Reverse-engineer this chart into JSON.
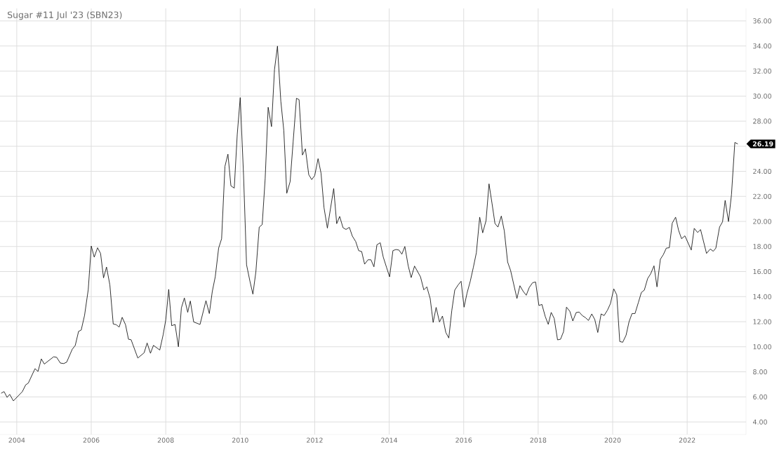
{
  "chart_data": {
    "type": "line",
    "title": "Sugar #11 Jul '23 (SBN23)",
    "x": [
      2003.58,
      2003.66,
      2003.74,
      2003.81,
      2003.91,
      2004.15,
      2004.24,
      2004.31,
      2004.49,
      2004.57,
      2004.66,
      2004.74,
      2004.99,
      2005.07,
      2005.17,
      2005.26,
      2005.34,
      2005.49,
      2005.57,
      2005.66,
      2005.73,
      2005.82,
      2005.92,
      2006.0,
      2006.08,
      2006.17,
      2006.25,
      2006.33,
      2006.41,
      2006.5,
      2006.59,
      2006.67,
      2006.75,
      2006.83,
      2006.92,
      2007.0,
      2007.07,
      2007.25,
      2007.42,
      2007.5,
      2007.59,
      2007.67,
      2007.84,
      2007.93,
      2008.0,
      2008.08,
      2008.16,
      2008.25,
      2008.34,
      2008.42,
      2008.5,
      2008.59,
      2008.66,
      2008.75,
      2008.92,
      2009.08,
      2009.17,
      2009.25,
      2009.33,
      2009.42,
      2009.5,
      2009.59,
      2009.67,
      2009.75,
      2009.84,
      2009.92,
      2010.0,
      2010.09,
      2010.17,
      2010.26,
      2010.34,
      2010.42,
      2010.51,
      2010.59,
      2010.67,
      2010.75,
      2010.84,
      2010.92,
      2011.0,
      2011.09,
      2011.17,
      2011.25,
      2011.34,
      2011.42,
      2011.51,
      2011.58,
      2011.67,
      2011.75,
      2011.84,
      2011.92,
      2012.0,
      2012.09,
      2012.17,
      2012.25,
      2012.34,
      2012.51,
      2012.59,
      2012.67,
      2012.76,
      2012.84,
      2012.93,
      2013.01,
      2013.1,
      2013.18,
      2013.26,
      2013.34,
      2013.43,
      2013.51,
      2013.59,
      2013.67,
      2013.76,
      2013.84,
      2013.93,
      2014.01,
      2014.1,
      2014.18,
      2014.26,
      2014.34,
      2014.42,
      2014.51,
      2014.59,
      2014.68,
      2014.84,
      2014.93,
      2015.01,
      2015.1,
      2015.18,
      2015.26,
      2015.35,
      2015.43,
      2015.52,
      2015.6,
      2015.68,
      2015.76,
      2015.85,
      2015.93,
      2016.01,
      2016.09,
      2016.18,
      2016.26,
      2016.34,
      2016.43,
      2016.51,
      2016.6,
      2016.68,
      2016.76,
      2016.84,
      2016.92,
      2017.01,
      2017.09,
      2017.18,
      2017.26,
      2017.43,
      2017.51,
      2017.6,
      2017.68,
      2017.76,
      2017.85,
      2017.93,
      2018.02,
      2018.1,
      2018.19,
      2018.27,
      2018.35,
      2018.43,
      2018.52,
      2018.6,
      2018.68,
      2018.76,
      2018.85,
      2018.93,
      2019.02,
      2019.1,
      2019.18,
      2019.27,
      2019.35,
      2019.44,
      2019.52,
      2019.6,
      2019.69,
      2019.77,
      2019.86,
      2019.94,
      2020.03,
      2020.11,
      2020.19,
      2020.27,
      2020.36,
      2020.44,
      2020.52,
      2020.6,
      2020.69,
      2020.77,
      2020.85,
      2020.94,
      2021.02,
      2021.11,
      2021.19,
      2021.28,
      2021.36,
      2021.44,
      2021.52,
      2021.6,
      2021.69,
      2021.77,
      2021.85,
      2021.94,
      2022.11,
      2022.19,
      2022.28,
      2022.36,
      2022.52,
      2022.62,
      2022.7,
      2022.77,
      2022.87,
      2022.95,
      2023.02,
      2023.11,
      2023.19,
      2023.28,
      2023.36
    ],
    "values": [
      6.29,
      6.42,
      5.96,
      6.2,
      5.68,
      6.42,
      6.96,
      7.1,
      8.25,
      8.03,
      9.03,
      8.62,
      9.2,
      9.16,
      8.7,
      8.66,
      8.77,
      9.8,
      10.1,
      11.23,
      11.33,
      12.5,
      14.57,
      18.04,
      17.15,
      17.9,
      17.45,
      15.5,
      16.36,
      14.93,
      11.82,
      11.76,
      11.57,
      12.35,
      11.76,
      10.6,
      10.56,
      9.1,
      9.52,
      10.3,
      9.48,
      10.11,
      9.74,
      10.95,
      12.13,
      14.58,
      11.68,
      11.78,
      10.0,
      13.1,
      13.89,
      12.75,
      13.65,
      11.98,
      11.78,
      13.68,
      12.65,
      14.41,
      15.59,
      17.87,
      18.62,
      24.4,
      25.37,
      22.84,
      22.66,
      26.94,
      29.88,
      23.64,
      16.54,
      15.24,
      14.2,
      15.97,
      19.55,
      19.75,
      23.42,
      29.11,
      27.57,
      32.12,
      33.99,
      29.6,
      27.26,
      22.25,
      23.18,
      26.33,
      29.83,
      29.72,
      25.3,
      25.79,
      23.73,
      23.34,
      23.66,
      25.01,
      23.85,
      21.09,
      19.47,
      22.63,
      19.82,
      20.4,
      19.5,
      19.36,
      19.53,
      18.83,
      18.4,
      17.67,
      17.6,
      16.59,
      16.94,
      16.94,
      16.38,
      18.14,
      18.3,
      17.16,
      16.32,
      15.58,
      17.67,
      17.76,
      17.72,
      17.39,
      18.0,
      16.46,
      15.52,
      16.44,
      15.58,
      14.54,
      14.78,
      13.85,
      11.94,
      13.14,
      11.98,
      12.45,
      11.14,
      10.7,
      12.88,
      14.52,
      14.93,
      15.23,
      13.16,
      14.28,
      15.27,
      16.35,
      17.5,
      20.34,
      19.09,
      20.06,
      23.0,
      21.45,
      19.83,
      19.55,
      20.43,
      19.25,
      16.76,
      16.08,
      13.85,
      14.87,
      14.41,
      14.11,
      14.73,
      15.11,
      15.17,
      13.29,
      13.38,
      12.41,
      11.79,
      12.74,
      12.26,
      10.55,
      10.6,
      11.2,
      13.16,
      12.83,
      12.06,
      12.73,
      12.77,
      12.5,
      12.32,
      12.1,
      12.62,
      12.17,
      11.14,
      12.62,
      12.49,
      12.92,
      13.44,
      14.62,
      14.14,
      10.42,
      10.36,
      10.92,
      12.0,
      12.65,
      12.65,
      13.53,
      14.33,
      14.52,
      15.45,
      15.82,
      16.46,
      14.78,
      16.98,
      17.35,
      17.87,
      17.9,
      19.87,
      20.34,
      19.29,
      18.62,
      18.85,
      17.72,
      19.45,
      19.12,
      19.35,
      17.45,
      17.8,
      17.62,
      17.87,
      19.55,
      19.97,
      21.68,
      19.99,
      22.14,
      26.3,
      26.19
    ],
    "color": "#000000",
    "xlim": [
      2003.55,
      2023.58
    ],
    "ylim": [
      3,
      37
    ],
    "xticks": [
      2004,
      2006,
      2008,
      2010,
      2012,
      2014,
      2016,
      2018,
      2020,
      2022
    ],
    "yticks": [
      {
        "value": 4,
        "label": "4.00"
      },
      {
        "value": 6,
        "label": "6.00"
      },
      {
        "value": 8,
        "label": "8.00"
      },
      {
        "value": 10,
        "label": "10.00"
      },
      {
        "value": 12,
        "label": "12.00"
      },
      {
        "value": 14,
        "label": "14.00"
      },
      {
        "value": 16,
        "label": "16.00"
      },
      {
        "value": 18,
        "label": "18.00"
      },
      {
        "value": 20,
        "label": "20.00"
      },
      {
        "value": 22,
        "label": "22.00"
      },
      {
        "value": 24,
        "label": "24.00"
      },
      {
        "value": 26,
        "label": null
      },
      {
        "value": 28,
        "label": "28.00"
      },
      {
        "value": 30,
        "label": "30.00"
      },
      {
        "value": 32,
        "label": "32.00"
      },
      {
        "value": 34,
        "label": "34.00"
      },
      {
        "value": 36,
        "label": "36.00"
      }
    ],
    "annotations": [
      {
        "text": "26.19",
        "x": 2023.36,
        "y": 26.19
      }
    ],
    "grid": true
  }
}
